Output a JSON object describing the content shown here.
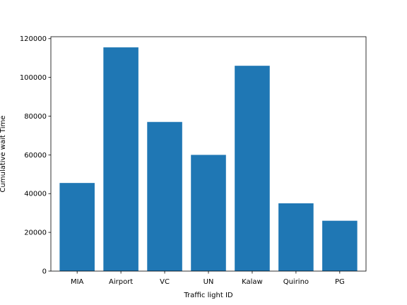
{
  "chart_data": {
    "type": "bar",
    "title": "",
    "xlabel": "Traffic light ID",
    "ylabel": "Cumulative wait Time",
    "categories": [
      "MIA",
      "Airport",
      "VC",
      "UN",
      "Kalaw",
      "Quirino",
      "PG"
    ],
    "values": [
      45500,
      115500,
      77000,
      60000,
      106000,
      35000,
      26000
    ],
    "ylim": [
      0,
      121000
    ],
    "yticks": [
      0,
      20000,
      40000,
      60000,
      80000,
      100000,
      120000
    ],
    "bar_color": "#1f77b4",
    "grid": false
  }
}
